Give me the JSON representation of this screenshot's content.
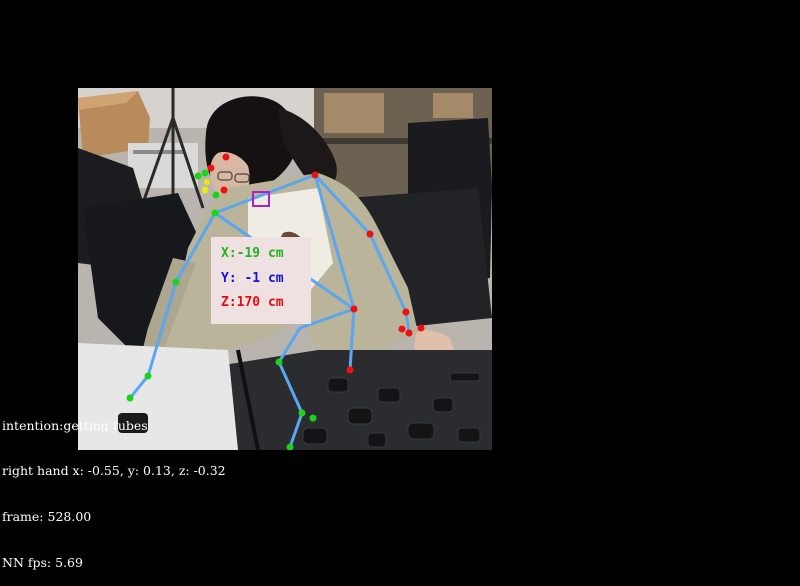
{
  "coords": {
    "x": "X:-19 cm",
    "y": "Y: -1 cm",
    "z": "Z:170 cm",
    "x_color": "#1fb41f",
    "y_color": "#1515d0",
    "z_color": "#e01010"
  },
  "hud": {
    "intention": "intention:getting tubes",
    "right_hand": "right hand x: -0.55, y: 0.13, z: -0.32",
    "frame": "frame: 528.00",
    "fps": "NN fps: 5.69"
  },
  "colors": {
    "skeleton_line": "#5aa6f0",
    "left_joint": "#19d419",
    "right_joint": "#ee1111",
    "face_point": "#e8e813",
    "roi_box": "#b020c8",
    "background": "#000000"
  }
}
